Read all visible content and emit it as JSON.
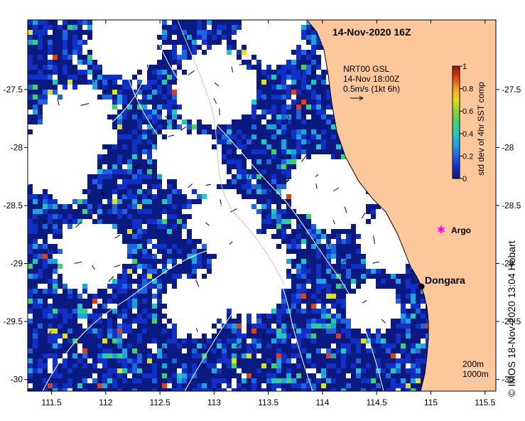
{
  "title": "14-Nov-2020 16Z",
  "vector_legend": {
    "source": "NRT00 GSL",
    "time": "14-Nov 18:00Z",
    "scale": "0.5m/s (1kt 6h)"
  },
  "colorbar": {
    "label": "std dev of 4hr SST comp",
    "ticks": [
      "0",
      "0.2",
      "0.4",
      "0.6",
      "0.8",
      "1"
    ],
    "colors": [
      "#0a1a80",
      "#1030c8",
      "#1e63e0",
      "#1fa2e0",
      "#20c8c0",
      "#40d070",
      "#90d030",
      "#e0e020",
      "#f0a020",
      "#e04010",
      "#a01000"
    ]
  },
  "places": [
    {
      "name": "Argo",
      "lon": 115.12,
      "lat": -28.81,
      "color": "#ff00ff"
    },
    {
      "name": "Dongara",
      "lon": 114.93,
      "lat": -29.25,
      "color": "#000000"
    }
  ],
  "depth_contours": [
    "200m",
    "1000m"
  ],
  "axes": {
    "x_ticks": [
      "111.5",
      "112",
      "112.5",
      "113",
      "113.5",
      "114",
      "114.5",
      "115",
      "115.5"
    ],
    "y_ticks": [
      "-27.5",
      "-28",
      "-28.5",
      "-29",
      "-29.5",
      "-30"
    ],
    "xlim": [
      111.28,
      115.6
    ],
    "ylim": [
      -30.1,
      -26.9
    ]
  },
  "colors": {
    "land": "#fcc79a",
    "ocean_missing": "#ffffff",
    "ocean_low": "#0d2cb0"
  },
  "credit": "© IMOS 18-Nov-2020 13:04 Hobart"
}
